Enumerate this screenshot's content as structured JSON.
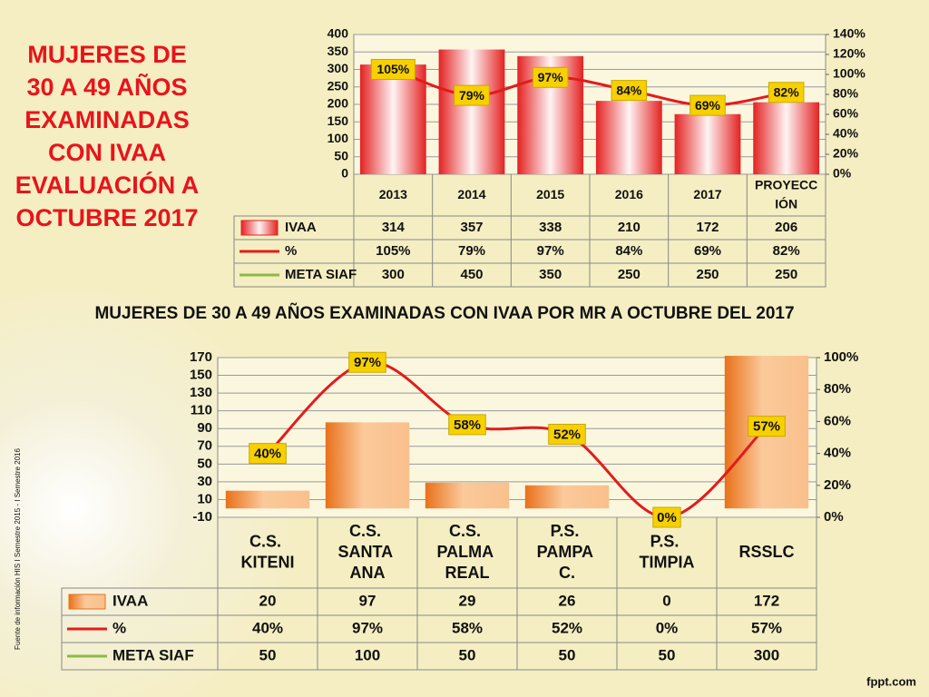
{
  "header": {
    "title": "MUJERES DE\n30 A 49 AÑOS\nEXAMINADAS\nCON IVAA\nEVALUACIÓN A\nOCTUBRE 2017",
    "subtitle": "MUJERES DE 30 A 49 AÑOS EXAMINADAS CON IVAA POR MR A OCTUBRE DEL 2017",
    "source": "Fuente de información HIS I Semestre 2015 - I Semestre 2016",
    "watermark": "fppt.com"
  },
  "chart_data": [
    {
      "type": "bar",
      "categories": [
        "2013",
        "2014",
        "2015",
        "2016",
        "2017",
        "PROYECCIÓN"
      ],
      "series": [
        {
          "name": "IVAA",
          "type": "bar",
          "color": "#e42222",
          "values": [
            314,
            357,
            338,
            210,
            172,
            206
          ]
        },
        {
          "name": "%",
          "type": "line",
          "axis": "y2",
          "color": "#e31b1b",
          "values": [
            105,
            79,
            97,
            84,
            69,
            82
          ],
          "value_labels": [
            "105%",
            "79%",
            "97%",
            "84%",
            "69%",
            "82%"
          ]
        },
        {
          "name": "META SIAF",
          "type": "line",
          "color": "#8db84a",
          "values": [
            300,
            450,
            350,
            250,
            250,
            250
          ]
        }
      ],
      "ylim": [
        0,
        400
      ],
      "yticks": [
        0,
        50,
        100,
        150,
        200,
        250,
        300,
        350,
        400
      ],
      "y2lim": [
        0,
        140
      ],
      "y2ticks": [
        {
          "value": 0,
          "label": "0%"
        },
        {
          "value": 20,
          "label": "20%"
        },
        {
          "value": 40,
          "label": "40%"
        },
        {
          "value": 60,
          "label": "60%"
        },
        {
          "value": 80,
          "label": "80%"
        },
        {
          "value": 100,
          "label": "100%"
        },
        {
          "value": 120,
          "label": "120%"
        },
        {
          "value": 140,
          "label": "140%"
        }
      ],
      "grid": true
    },
    {
      "type": "bar",
      "categories": [
        "C.S. KITENI",
        "C.S. SANTA ANA",
        "C.S. PALMA REAL",
        "P.S. PAMPA C.",
        "P.S. TIMPIA",
        "RSSLC"
      ],
      "series": [
        {
          "name": "IVAA",
          "type": "bar",
          "color": "#e8711a",
          "values": [
            20,
            97,
            29,
            26,
            0,
            172
          ]
        },
        {
          "name": "%",
          "type": "line",
          "axis": "y2",
          "color": "#e31b1b",
          "values": [
            40,
            97,
            58,
            52,
            0,
            57
          ],
          "value_labels": [
            "40%",
            "97%",
            "58%",
            "52%",
            "0%",
            "57%"
          ]
        },
        {
          "name": "META SIAF",
          "type": "line",
          "color": "#8db84a",
          "values": [
            50,
            100,
            50,
            50,
            50,
            300
          ]
        }
      ],
      "ylim": [
        -10,
        170
      ],
      "yticks": [
        -10,
        10,
        30,
        50,
        70,
        90,
        110,
        130,
        150,
        170
      ],
      "y2lim": [
        0,
        100
      ],
      "y2ticks": [
        {
          "value": 0,
          "label": "0%"
        },
        {
          "value": 20,
          "label": "20%"
        },
        {
          "value": 40,
          "label": "40%"
        },
        {
          "value": 60,
          "label": "60%"
        },
        {
          "value": 80,
          "label": "80%"
        },
        {
          "value": 100,
          "label": "100%"
        }
      ],
      "grid": true
    }
  ]
}
